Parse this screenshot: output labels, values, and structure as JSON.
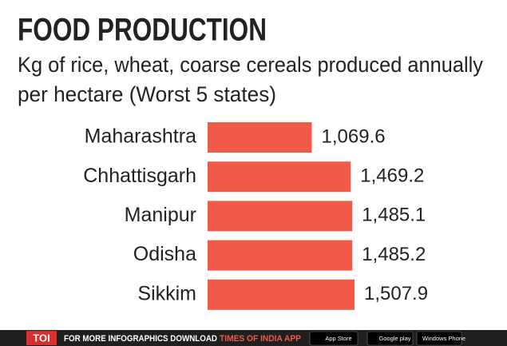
{
  "chart_data": {
    "type": "hbar",
    "title": "FOOD PRODUCTION",
    "subtitle": [
      "Kg of rice, wheat, coarse cereals produced annually",
      "per hectare (Worst 5 states)"
    ],
    "categories": [
      "Maharashtra",
      "Chhattisgarh",
      "Manipur",
      "Odisha",
      "Sikkim"
    ],
    "values": [
      1069.6,
      1469.2,
      1485.1,
      1485.2,
      1507.9
    ],
    "value_labels": [
      "1,069.6",
      "1,469.2",
      "1,485.1",
      "1,485.2",
      "1,507.9"
    ],
    "color": "#f15a48"
  },
  "footer": {
    "logo": "TOI",
    "text": "FOR MORE INFOGRAPHICS DOWNLOAD",
    "app": "TIMES OF INDIA APP",
    "badges": [
      "App Store",
      "Google play",
      "Windows Phone"
    ]
  }
}
